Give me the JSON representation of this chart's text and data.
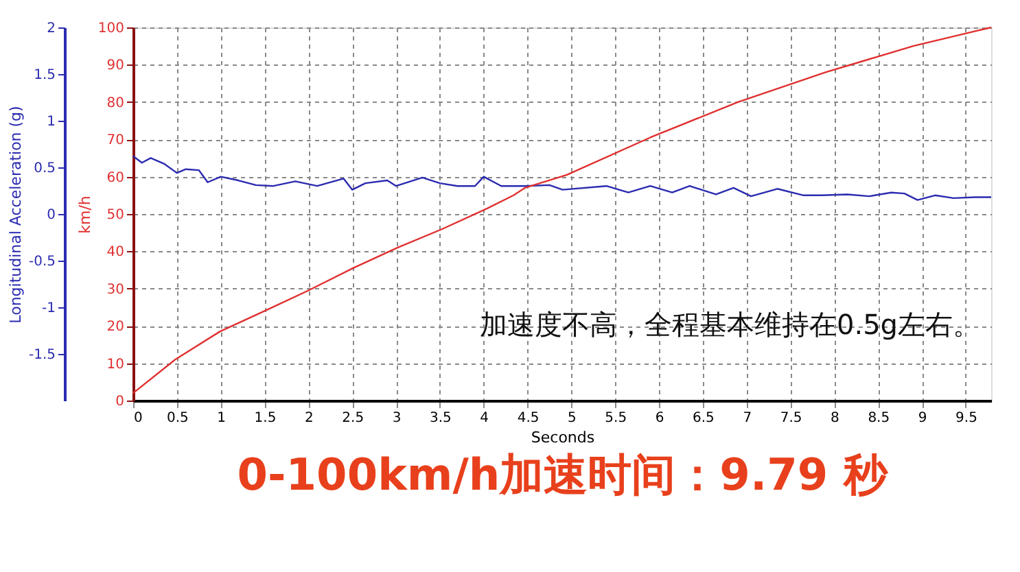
{
  "chart_data": {
    "type": "line",
    "title": "0-100km/h加速时间：9.79 秒",
    "xlabel": "Seconds",
    "ylabel": "Longitudinal Acceleration (g)",
    "y2label": "km/h",
    "xlim": [
      0,
      9.79
    ],
    "xticks": [
      0,
      0.5,
      1,
      1.5,
      2,
      2.5,
      3,
      3.5,
      4,
      4.5,
      5,
      5.5,
      6,
      6.5,
      7,
      7.5,
      8,
      8.5,
      9,
      9.5
    ],
    "ylim": [
      -2,
      2
    ],
    "yticks": [
      -1.5,
      -1,
      -0.5,
      0,
      0.5,
      1,
      1.5,
      2
    ],
    "y2lim": [
      0,
      100
    ],
    "y2ticks": [
      0,
      10,
      20,
      30,
      40,
      50,
      60,
      70,
      80,
      90,
      100
    ],
    "grid": true,
    "line_style": "solid",
    "annotations": [
      "加速度不高，全程基本维持在0.5g左右。"
    ],
    "series": [
      {
        "color": "#2b2bb0",
        "x": [
          0,
          0.1,
          0.2,
          0.35,
          0.5,
          0.6,
          0.75,
          0.85,
          1.0,
          1.2,
          1.4,
          1.6,
          1.85,
          2.1,
          2.4,
          2.5,
          2.65,
          2.9,
          3.0,
          3.3,
          3.5,
          3.7,
          3.9,
          4.0,
          4.2,
          4.47,
          4.75,
          4.9,
          5.4,
          5.65,
          5.9,
          6.15,
          6.35,
          6.65,
          6.85,
          7.05,
          7.35,
          7.65,
          7.85,
          8.15,
          8.4,
          8.65,
          8.8,
          8.95,
          9.15,
          9.36,
          9.61,
          9.79
        ],
        "values": [
          0.62,
          0.55,
          0.6,
          0.54,
          0.44,
          0.48,
          0.47,
          0.34,
          0.4,
          0.36,
          0.31,
          0.3,
          0.35,
          0.3,
          0.38,
          0.26,
          0.33,
          0.36,
          0.3,
          0.39,
          0.33,
          0.3,
          0.3,
          0.4,
          0.3,
          0.3,
          0.31,
          0.26,
          0.3,
          0.23,
          0.3,
          0.23,
          0.3,
          0.21,
          0.28,
          0.19,
          0.27,
          0.2,
          0.2,
          0.21,
          0.19,
          0.23,
          0.22,
          0.15,
          0.2,
          0.17,
          0.18,
          0.18
        ]
      },
      {
        "color": "#e03030",
        "axis": "y2",
        "x": [
          0,
          0.48,
          0.99,
          1.5,
          2.0,
          2.51,
          3.02,
          3.53,
          4.04,
          4.34,
          4.47,
          4.95,
          5.9,
          6.9,
          7.9,
          8.4,
          8.9,
          9.61,
          9.79
        ],
        "values": [
          2,
          11,
          18.5,
          24,
          29.5,
          35.5,
          41,
          46,
          51.5,
          55,
          57,
          60.5,
          70.5,
          80,
          88,
          91.5,
          95,
          99,
          100
        ]
      }
    ]
  }
}
